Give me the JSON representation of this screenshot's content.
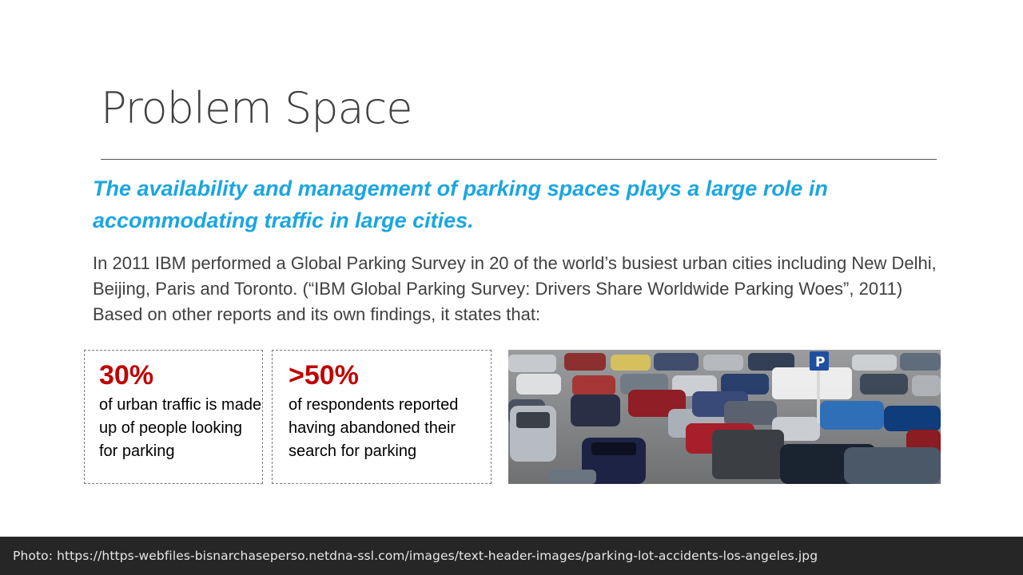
{
  "slide": {
    "title": "Problem Space",
    "lead": "The availability and management of parking spaces plays a large role in accommodating traffic in large cities.",
    "body": "In 2011 IBM performed a Global Parking Survey in 20 of the world’s busiest urban cities including New Delhi, Beijing, Paris and Toronto. (“IBM Global Parking Survey: Drivers Share Worldwide Parking Woes”, 2011)  Based on other reports and its own findings, it states that:",
    "stats": [
      {
        "value": "30%",
        "description": "of urban traffic is made up of people looking for parking"
      },
      {
        "value": ">50%",
        "description": "of respondents reported having abandoned their search for parking"
      }
    ],
    "photo": {
      "subject": "parking lot full of cars",
      "sign_text": "P"
    },
    "colors": {
      "lead": "#1ba6e0",
      "stat_value": "#c00000",
      "title": "#404040",
      "caption_bar": "#262626"
    }
  },
  "caption": "Photo: https://https-webfiles-bisnarchaseperso.netdna-ssl.com/images/text-header-images/parking-lot-accidents-los-angeles.jpg"
}
